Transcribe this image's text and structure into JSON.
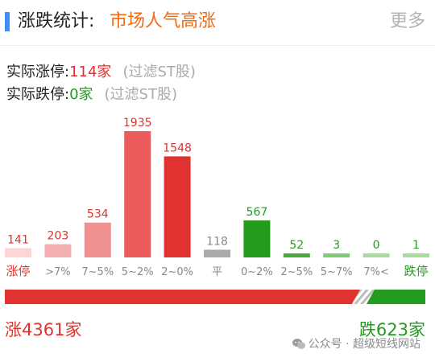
{
  "header": {
    "title": "涨跌统计:",
    "subtitle": "市场人气高涨",
    "more_label": "更多"
  },
  "stats": {
    "limit_up_label": "实际涨停:",
    "limit_up_value": "114家",
    "limit_up_note": "(过滤ST股)",
    "limit_down_label": "实际跌停:",
    "limit_down_value": "0家",
    "limit_down_note": "(过滤ST股)"
  },
  "chart_data": {
    "type": "bar",
    "categories": [
      "涨停",
      ">7%",
      "7~5%",
      "5~2%",
      "2~0%",
      "平",
      "0~2%",
      "2~5%",
      "5~7%",
      "7%<",
      "跌停"
    ],
    "values": [
      141,
      203,
      534,
      1935,
      1548,
      118,
      567,
      52,
      3,
      0,
      1
    ],
    "value_labels": [
      "141",
      "203",
      "534",
      "1935",
      "1548",
      "118",
      "567",
      "52",
      "3",
      "0",
      "1"
    ],
    "title": "",
    "xlabel": "",
    "ylabel": "",
    "ylim": [
      0,
      1935
    ],
    "grid": false,
    "legend": "none",
    "colors": {
      "bars": [
        "#fbd6d5",
        "#f5b1b1",
        "#f19090",
        "#ec5c5c",
        "#e0322f",
        "#aaaaaa",
        "#249b1c",
        "#45ad37",
        "#7fcb73",
        "#a8dc9e",
        "#a8dc9e"
      ],
      "labels_up": "#e0322f",
      "label_flat": "#888888",
      "labels_down": "#239b1e"
    }
  },
  "summary": {
    "up_total": "涨4361家",
    "down_total": "跌623家",
    "up_color": "#e0322f",
    "down_color": "#239b1e",
    "up_count": 4361,
    "down_count": 623
  },
  "watermark": {
    "text": "公众号 · 超级短线网站",
    "icon": "wechat-icon"
  }
}
